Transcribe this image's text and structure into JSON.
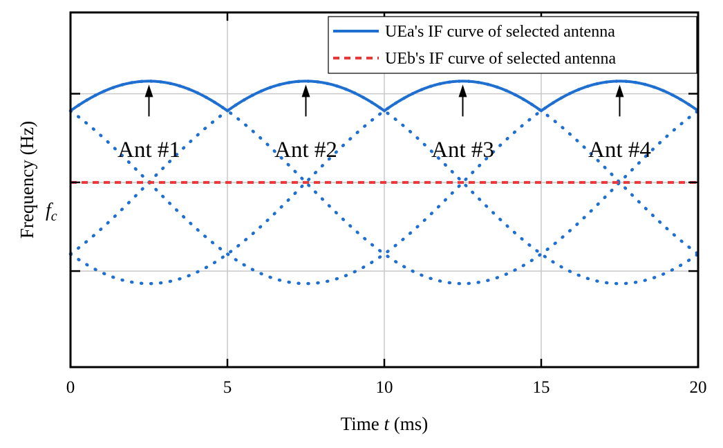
{
  "chart_data": {
    "type": "line",
    "xlabel_prefix": "Time ",
    "xlabel_var": "t",
    "xlabel_suffix": " (ms)",
    "ylabel": "Frequency (Hz)",
    "yref_label_main": "f",
    "yref_label_sub": "c",
    "xlim": [
      0,
      20
    ],
    "x_ticks": [
      0,
      5,
      10,
      15,
      20
    ],
    "ylim": [
      -2.5,
      2.3
    ],
    "y_ticks_unlabeled": [
      -1.2,
      1.2
    ],
    "grid": true,
    "legend_position": "top-right",
    "selected_period_ms": 5,
    "antenna_curves": [
      {
        "name": "Ant #1",
        "peak_time_ms": 2.5,
        "peak_value": 1.37
      },
      {
        "name": "Ant #2",
        "peak_time_ms": 7.5,
        "peak_value": 1.37
      },
      {
        "name": "Ant #3",
        "peak_time_ms": 12.5,
        "peak_value": 1.37
      },
      {
        "name": "Ant #4",
        "peak_time_ms": 17.5,
        "peak_value": 1.37
      }
    ],
    "curve_shape": {
      "min_value": -1.37,
      "period_ms": 20
    },
    "series": [
      {
        "name": "UEa's IF curve of selected antenna",
        "style": "solid",
        "color": "#1f6fd1"
      },
      {
        "name": "UEb's IF curve of selected antenna",
        "style": "dashed",
        "color": "#e8383b",
        "value": 0
      }
    ],
    "other_antenna_style": "dotted",
    "annotations": [
      "Ant #1",
      "Ant #2",
      "Ant #3",
      "Ant #4"
    ]
  }
}
